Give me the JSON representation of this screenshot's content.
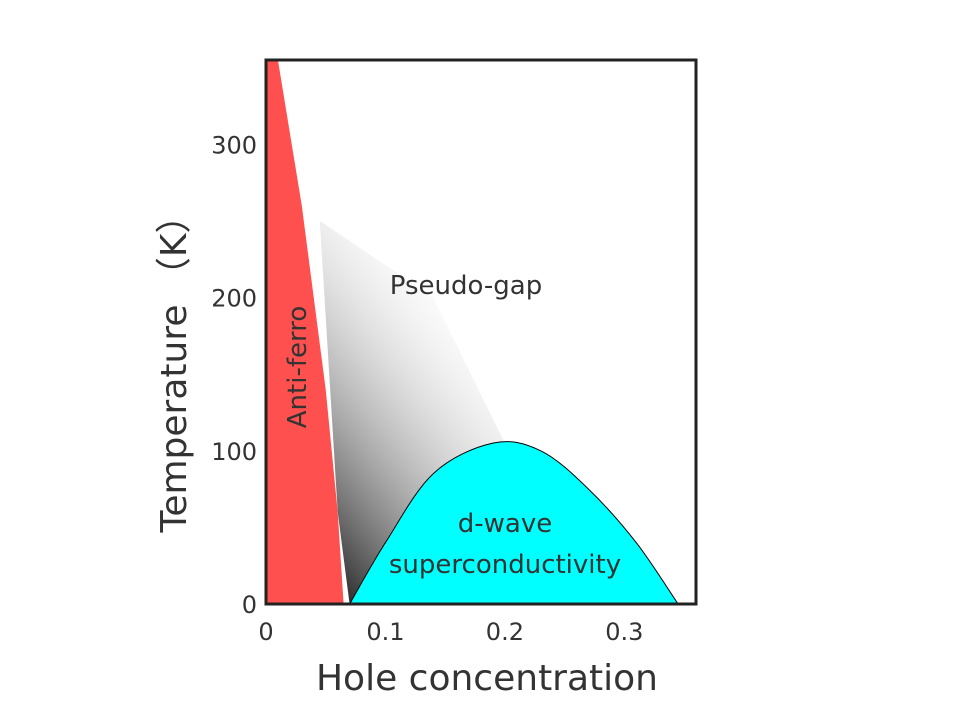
{
  "chart_data": {
    "type": "area",
    "xlabel": "Hole concentration",
    "ylabel": "Temperature （K）",
    "xlim": [
      0,
      0.36
    ],
    "ylim": [
      0,
      355
    ],
    "x_ticks": [
      0,
      0.1,
      0.2,
      0.3
    ],
    "x_tick_labels": [
      "0",
      "0.1",
      "0.2",
      "0.3"
    ],
    "y_ticks": [
      0,
      100,
      200,
      300
    ],
    "y_tick_labels": [
      "0",
      "100",
      "200",
      "300"
    ],
    "grid": false,
    "regions": [
      {
        "name": "Anti-ferro",
        "color": "#ff5050",
        "boundary": [
          [
            0.0,
            355
          ],
          [
            0.01,
            355
          ],
          [
            0.03,
            260
          ],
          [
            0.05,
            140
          ],
          [
            0.06,
            60
          ],
          [
            0.065,
            0
          ],
          [
            0.0,
            0
          ]
        ]
      },
      {
        "name": "Pseudo-gap",
        "color": "#000000",
        "boundary": [
          [
            0.045,
            250
          ],
          [
            0.14,
            200
          ],
          [
            0.2,
            105
          ],
          [
            0.17,
            80
          ],
          [
            0.12,
            30
          ],
          [
            0.07,
            0
          ],
          [
            0.06,
            60
          ]
        ]
      },
      {
        "name_lines": [
          "d-wave",
          "superconductivity"
        ],
        "color": "#00ffff",
        "curve": [
          [
            0.07,
            0
          ],
          [
            0.1,
            40
          ],
          [
            0.14,
            85
          ],
          [
            0.19,
            105
          ],
          [
            0.23,
            100
          ],
          [
            0.27,
            75
          ],
          [
            0.31,
            40
          ],
          [
            0.345,
            0
          ]
        ]
      }
    ],
    "labels": {
      "antiferro": "Anti-ferro",
      "pseudogap": "Pseudo-gap",
      "sc_line1": "d-wave",
      "sc_line2": "superconductivity"
    }
  }
}
